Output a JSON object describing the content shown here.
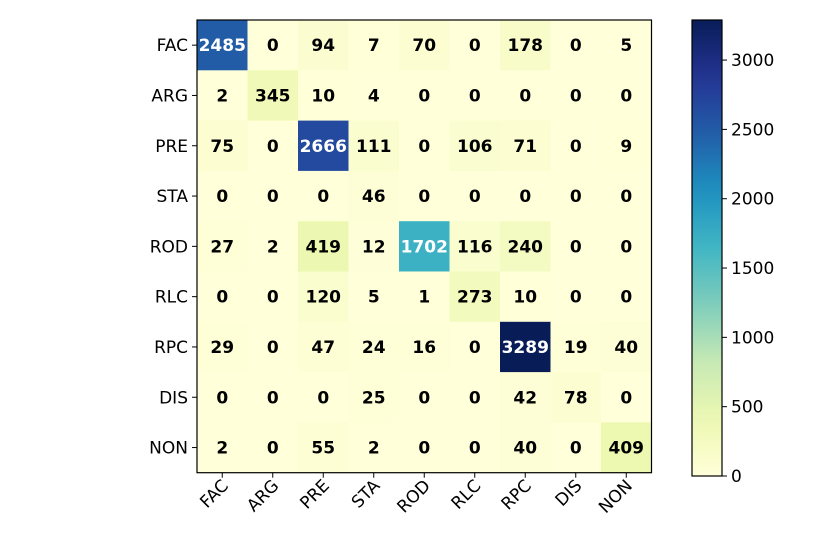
{
  "chart_data": {
    "type": "heatmap",
    "title": "",
    "xlabel": "",
    "ylabel": "",
    "row_labels": [
      "FAC",
      "ARG",
      "PRE",
      "STA",
      "ROD",
      "RLC",
      "RPC",
      "DIS",
      "NON"
    ],
    "col_labels": [
      "FAC",
      "ARG",
      "PRE",
      "STA",
      "ROD",
      "RLC",
      "RPC",
      "DIS",
      "NON"
    ],
    "values": [
      [
        2485,
        0,
        94,
        7,
        70,
        0,
        178,
        0,
        5
      ],
      [
        2,
        345,
        10,
        4,
        0,
        0,
        0,
        0,
        0
      ],
      [
        75,
        0,
        2666,
        111,
        0,
        106,
        71,
        0,
        9
      ],
      [
        0,
        0,
        0,
        46,
        0,
        0,
        0,
        0,
        0
      ],
      [
        27,
        2,
        419,
        12,
        1702,
        116,
        240,
        0,
        0
      ],
      [
        0,
        0,
        120,
        5,
        1,
        273,
        10,
        0,
        0
      ],
      [
        29,
        0,
        47,
        24,
        16,
        0,
        3289,
        19,
        40
      ],
      [
        0,
        0,
        0,
        25,
        0,
        0,
        42,
        78,
        0
      ],
      [
        2,
        0,
        55,
        2,
        0,
        0,
        40,
        0,
        409
      ]
    ],
    "colormap": "YlGnBu",
    "colorbar": {
      "vmin": 0,
      "vmax": 3289,
      "ticks": [
        0,
        500,
        1000,
        1500,
        2000,
        2500,
        3000
      ]
    },
    "text_colors": {
      "light": "#ffffff",
      "dark": "#000000"
    },
    "grid": false,
    "legend": "colorbar-right"
  }
}
